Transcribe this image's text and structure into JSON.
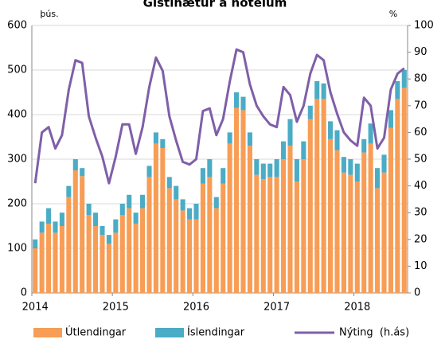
{
  "chart_data": {
    "type": "bar",
    "stacked": true,
    "title": "Gistinætur á hótelum",
    "y_label": "þús.",
    "y2_label": "%",
    "categories": [
      "2014",
      null,
      null,
      null,
      null,
      null,
      null,
      null,
      null,
      null,
      null,
      null,
      "2015",
      null,
      null,
      null,
      null,
      null,
      null,
      null,
      null,
      null,
      null,
      null,
      "2016",
      null,
      null,
      null,
      null,
      null,
      null,
      null,
      null,
      null,
      null,
      null,
      "2017",
      null,
      null,
      null,
      null,
      null,
      null,
      null,
      null,
      null,
      null,
      null,
      "2018",
      null,
      null,
      null,
      null,
      null,
      null,
      null
    ],
    "series": [
      {
        "name": "Útlendingar",
        "type": "bar",
        "color": "#f79d55",
        "values": [
          100,
          135,
          155,
          135,
          150,
          215,
          275,
          262,
          175,
          150,
          130,
          110,
          135,
          175,
          190,
          155,
          190,
          260,
          335,
          325,
          235,
          210,
          185,
          165,
          165,
          245,
          260,
          190,
          245,
          335,
          415,
          410,
          330,
          265,
          255,
          260,
          260,
          300,
          330,
          250,
          300,
          390,
          435,
          435,
          345,
          320,
          270,
          265,
          250,
          315,
          335,
          235,
          270,
          370,
          435,
          460
        ]
      },
      {
        "name": "Íslendingar",
        "type": "bar",
        "color": "#4bacc6",
        "values": [
          20,
          25,
          35,
          25,
          30,
          25,
          25,
          18,
          25,
          30,
          20,
          20,
          30,
          25,
          30,
          25,
          30,
          25,
          25,
          20,
          25,
          30,
          25,
          25,
          35,
          35,
          40,
          25,
          35,
          25,
          35,
          30,
          30,
          35,
          35,
          30,
          40,
          40,
          60,
          50,
          40,
          30,
          40,
          35,
          40,
          45,
          35,
          35,
          40,
          30,
          45,
          45,
          40,
          40,
          40,
          40
        ]
      },
      {
        "name": "Nýting  (h.ás)",
        "type": "line",
        "axis": "y2",
        "color": "#7f5fa8",
        "values": [
          41,
          60,
          62,
          54,
          59,
          76,
          87,
          86,
          66,
          58,
          51,
          41,
          51,
          63,
          63,
          52,
          62,
          77,
          88,
          83,
          66,
          57,
          49,
          48,
          50,
          68,
          69,
          59,
          65,
          79,
          91,
          90,
          78,
          70,
          66,
          63,
          62,
          77,
          74,
          64,
          70,
          82,
          89,
          87,
          75,
          67,
          60,
          57,
          55,
          73,
          70,
          54,
          58,
          76,
          82,
          84
        ]
      }
    ],
    "ylim": [
      0,
      600
    ],
    "yticks": [
      0,
      100,
      200,
      300,
      400,
      500,
      600
    ],
    "y2lim": [
      0,
      100
    ],
    "y2ticks": [
      0,
      10,
      20,
      30,
      40,
      50,
      60,
      70,
      80,
      90,
      100
    ],
    "grid": true,
    "legend": "bottom"
  }
}
